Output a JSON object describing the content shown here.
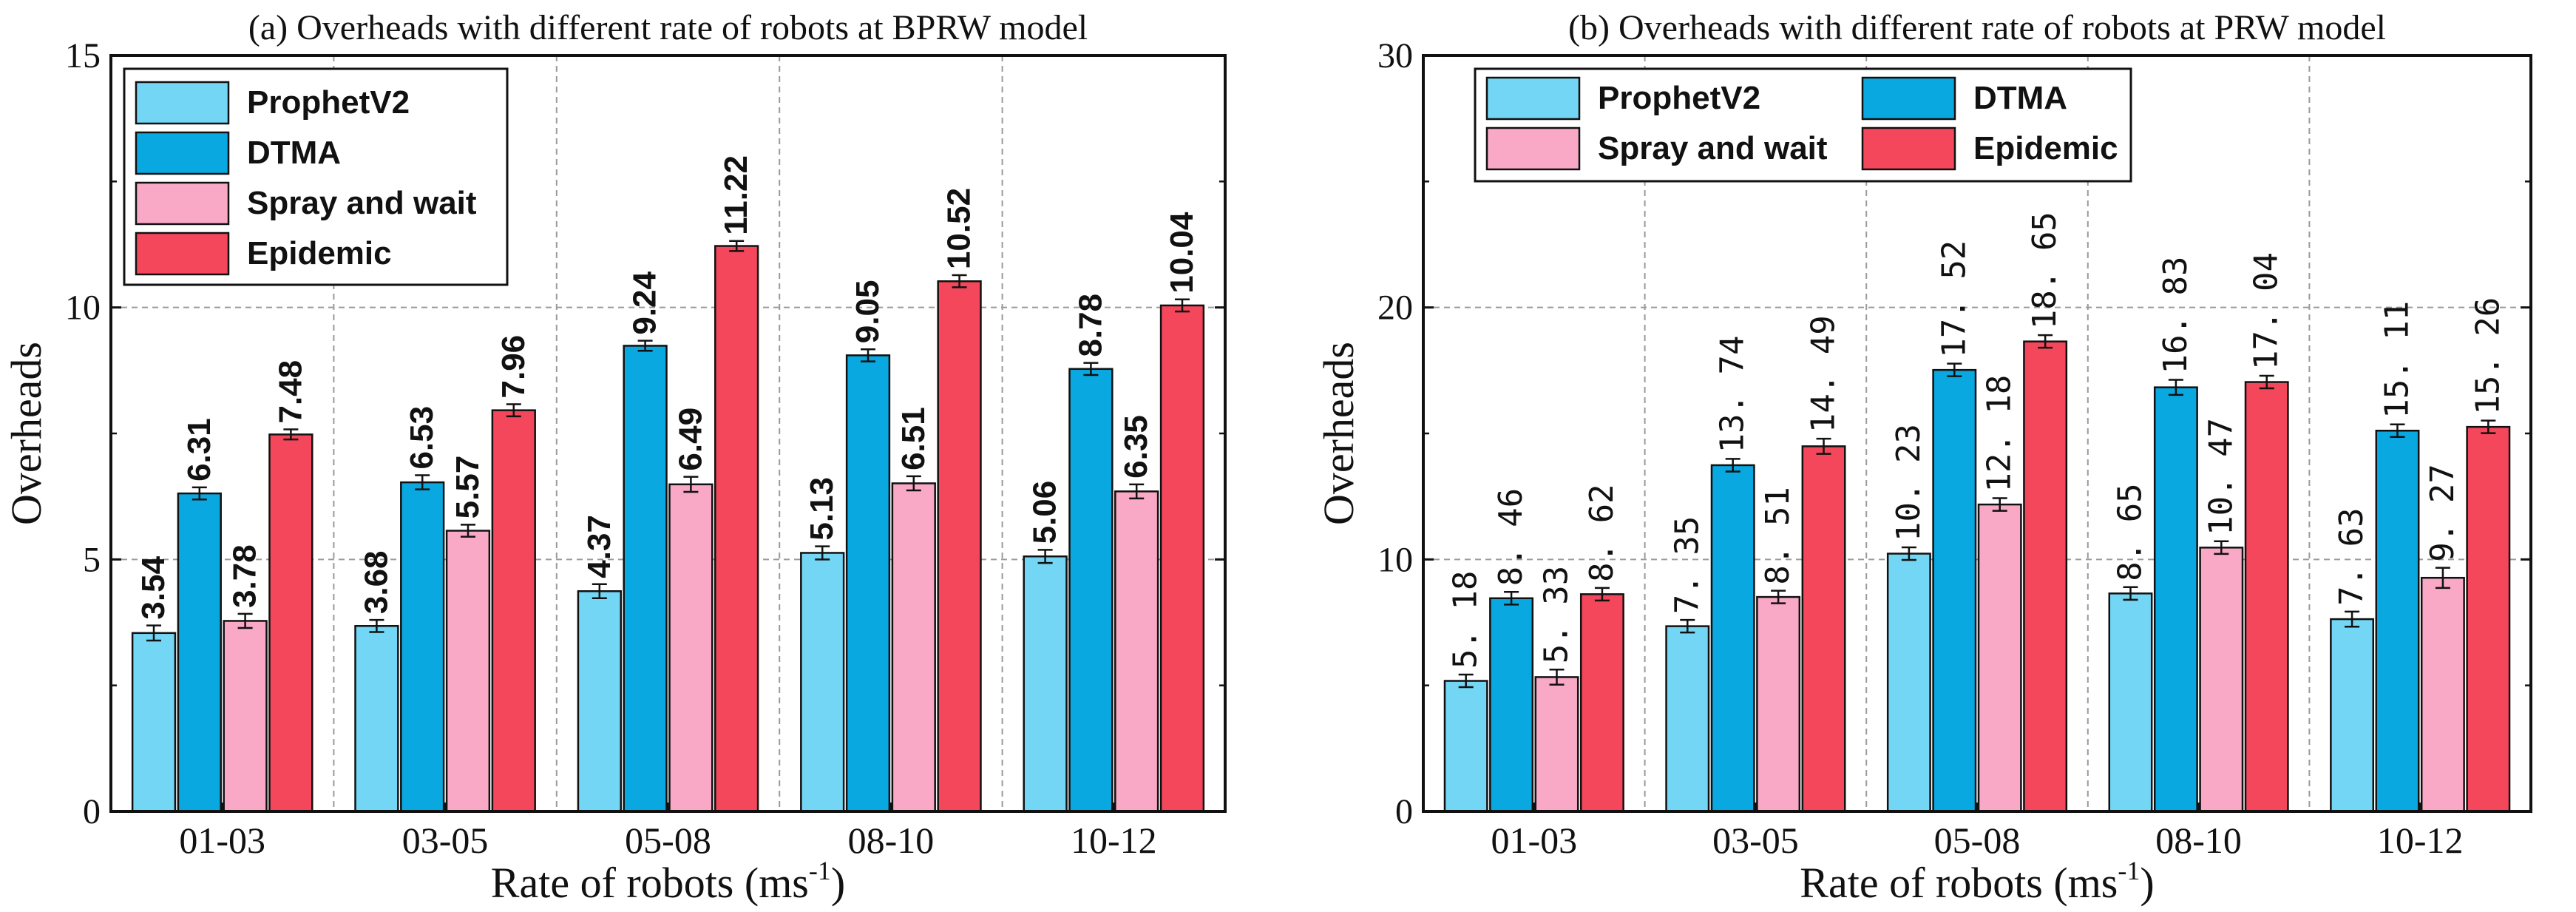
{
  "chart_data": [
    {
      "type": "bar",
      "title": "(a) Overheads with different rate of robots at BPRW model",
      "xlabel": "Rate of robots (ms",
      "xlabel_sup": "-1",
      "xlabel_close": ")",
      "ylabel": "Overheads",
      "ylim": [
        0,
        15
      ],
      "yticks": [
        0,
        5,
        10,
        15
      ],
      "ytick_labels": [
        "0",
        "5",
        "10",
        "15"
      ],
      "categories": [
        "01-03",
        "03-05",
        "05-08",
        "08-10",
        "10-12"
      ],
      "legend_position": "top-left",
      "legend_layout": "one-column",
      "label_style": "bold",
      "series": [
        {
          "name": "ProphetV2",
          "color": "#72D6F4",
          "values": [
            3.54,
            3.68,
            4.37,
            5.13,
            5.06
          ],
          "labels": [
            "3.54",
            "3.68",
            "4.37",
            "5.13",
            "5.06"
          ],
          "errors": [
            0.15,
            0.12,
            0.14,
            0.13,
            0.13
          ]
        },
        {
          "name": "DTMA",
          "color": "#0AA8E0",
          "values": [
            6.31,
            6.53,
            9.24,
            9.05,
            8.78
          ],
          "labels": [
            "6.31",
            "6.53",
            "9.24",
            "9.05",
            "8.78"
          ],
          "errors": [
            0.12,
            0.14,
            0.1,
            0.12,
            0.12
          ]
        },
        {
          "name": "Spray and wait",
          "color": "#F9A8C6",
          "values": [
            3.78,
            5.57,
            6.49,
            6.51,
            6.35
          ],
          "labels": [
            "3.78",
            "5.57",
            "6.49",
            "6.51",
            "6.35"
          ],
          "errors": [
            0.14,
            0.12,
            0.15,
            0.14,
            0.14
          ]
        },
        {
          "name": "Epidemic",
          "color": "#F5475C",
          "values": [
            7.48,
            7.96,
            11.22,
            10.52,
            10.04
          ],
          "labels": [
            "7.48",
            "7.96",
            "11.22",
            "10.52",
            "10.04"
          ],
          "errors": [
            0.1,
            0.12,
            0.1,
            0.12,
            0.12
          ]
        }
      ]
    },
    {
      "type": "bar",
      "title": "(b) Overheads with different rate of robots at PRW model",
      "xlabel": "Rate of robots (ms",
      "xlabel_sup": "-1",
      "xlabel_close": ")",
      "ylabel": "Overheads",
      "ylim": [
        0,
        30
      ],
      "yticks": [
        0,
        10,
        20,
        30
      ],
      "ytick_labels": [
        "0",
        "10",
        "20",
        "30"
      ],
      "categories": [
        "01-03",
        "03-05",
        "05-08",
        "08-10",
        "10-12"
      ],
      "legend_position": "top-left",
      "legend_layout": "two-column",
      "label_style": "mono",
      "series": [
        {
          "name": "ProphetV2",
          "color": "#72D6F4",
          "values": [
            5.18,
            7.35,
            10.23,
            8.65,
            7.63
          ],
          "labels": [
            "5. 18",
            "7. 35",
            "10. 23",
            "8. 65",
            "7. 63"
          ],
          "errors": [
            0.25,
            0.25,
            0.25,
            0.25,
            0.3
          ]
        },
        {
          "name": "DTMA",
          "color": "#0AA8E0",
          "values": [
            8.46,
            13.74,
            17.52,
            16.83,
            15.11
          ],
          "labels": [
            "8. 46",
            "13. 74",
            "17. 52",
            "16. 83",
            "15. 11"
          ],
          "errors": [
            0.25,
            0.25,
            0.25,
            0.3,
            0.25
          ]
        },
        {
          "name": "Spray and wait",
          "color": "#F9A8C6",
          "values": [
            5.33,
            8.51,
            12.18,
            10.47,
            9.27
          ],
          "labels": [
            "5. 33",
            "8. 51",
            "12. 18",
            "10. 47",
            "9. 27"
          ],
          "errors": [
            0.3,
            0.25,
            0.25,
            0.25,
            0.4
          ]
        },
        {
          "name": "Epidemic",
          "color": "#F5475C",
          "values": [
            8.62,
            14.49,
            18.65,
            17.04,
            15.26
          ],
          "labels": [
            "8. 62",
            "14. 49",
            "18. 65",
            "17. 04",
            "15. 26"
          ],
          "errors": [
            0.25,
            0.3,
            0.25,
            0.25,
            0.25
          ]
        }
      ]
    }
  ]
}
